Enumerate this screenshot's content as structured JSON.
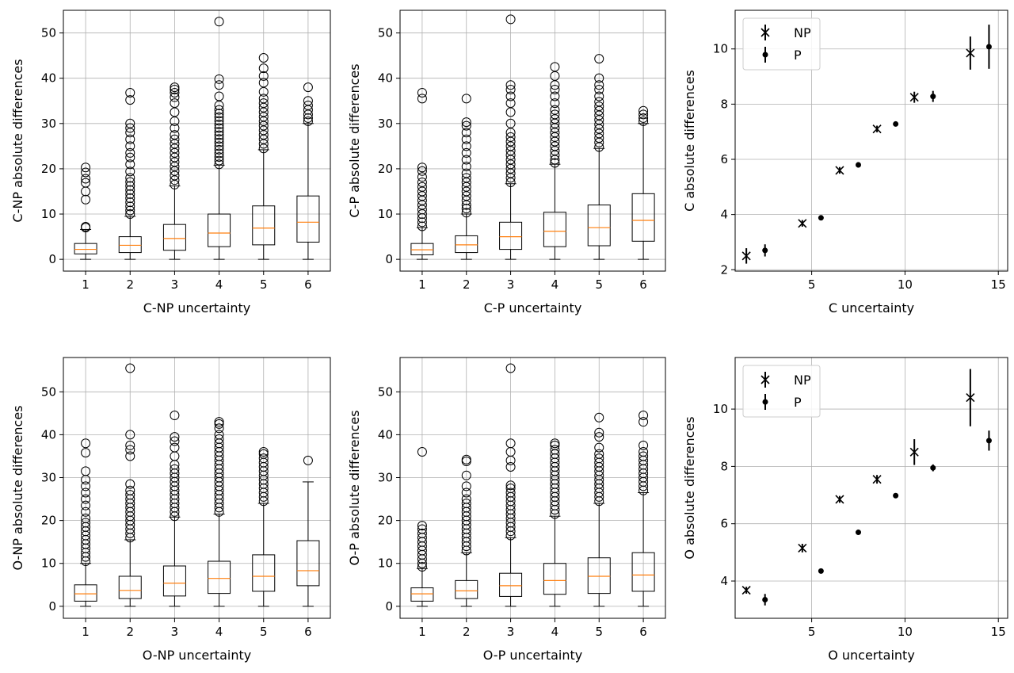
{
  "chart_data": [
    {
      "type": "box",
      "xlabel": "C-NP uncertainty",
      "ylabel": "C-NP absolute differences",
      "categories": [
        "1",
        "2",
        "3",
        "4",
        "5",
        "6"
      ],
      "xlim": [
        0.5,
        6.5
      ],
      "ylim": [
        -2.6,
        55
      ],
      "yticks": [
        0,
        10,
        20,
        30,
        40,
        50
      ],
      "grid": true,
      "colors": {
        "median": "#ff7f0e",
        "box": "#000000"
      },
      "boxes": [
        {
          "whislo": 0,
          "q1": 1.2,
          "med": 2.2,
          "q3": 3.5,
          "whishi": 6.6,
          "fliers": [
            7,
            7.2,
            13.2,
            15,
            16.9,
            17.8,
            19.2,
            20.3
          ]
        },
        {
          "whislo": 0,
          "q1": 1.5,
          "med": 3.1,
          "q3": 5.0,
          "whishi": 9.5,
          "fliers": [
            10,
            10.8,
            11.7,
            12.6,
            13.5,
            14.4,
            15.3,
            16.2,
            17.1,
            18,
            19.4,
            21,
            22.5,
            23.5,
            25,
            26.5,
            28,
            29,
            30,
            35.2,
            36.8
          ]
        },
        {
          "whislo": 0,
          "q1": 2.0,
          "med": 4.6,
          "q3": 7.7,
          "whishi": 16.2,
          "fliers": [
            16.5,
            17.5,
            18.5,
            19.5,
            20.5,
            21.5,
            22.5,
            23.5,
            24.5,
            25.5,
            26.5,
            27.5,
            29,
            30.5,
            32.5,
            34.5,
            35.8,
            36.8,
            37.5,
            38
          ]
        },
        {
          "whislo": 0,
          "q1": 2.8,
          "med": 5.8,
          "q3": 10.0,
          "whishi": 20.8,
          "fliers": [
            21,
            21.8,
            22.6,
            23.4,
            24.2,
            25,
            25.8,
            26.6,
            27.4,
            28.2,
            29,
            29.8,
            30.6,
            31.4,
            32.2,
            33,
            34,
            36,
            38.5,
            39.8,
            52.5
          ]
        },
        {
          "whislo": 0,
          "q1": 3.2,
          "med": 6.9,
          "q3": 11.8,
          "whishi": 24.2,
          "fliers": [
            24.5,
            25.5,
            26.5,
            27.5,
            28.5,
            29.5,
            30.5,
            31.5,
            32.5,
            33.5,
            34.5,
            35.5,
            37,
            39,
            40.5,
            42.2,
            44.5
          ]
        },
        {
          "whislo": 0,
          "q1": 3.8,
          "med": 8.2,
          "q3": 14.0,
          "whishi": 30.0,
          "fliers": [
            30.5,
            31.2,
            32,
            33,
            34,
            35,
            38
          ]
        }
      ]
    },
    {
      "type": "box",
      "xlabel": "C-P uncertainty",
      "ylabel": "C-P absolute differences",
      "categories": [
        "1",
        "2",
        "3",
        "4",
        "5",
        "6"
      ],
      "xlim": [
        0.5,
        6.5
      ],
      "ylim": [
        -2.6,
        55
      ],
      "yticks": [
        0,
        10,
        20,
        30,
        40,
        50
      ],
      "grid": true,
      "colors": {
        "median": "#ff7f0e",
        "box": "#000000"
      },
      "boxes": [
        {
          "whislo": 0,
          "q1": 1.0,
          "med": 2.1,
          "q3": 3.5,
          "whishi": 7.0,
          "fliers": [
            7.3,
            8.2,
            9.1,
            10,
            11,
            12,
            13,
            14,
            15,
            16,
            17,
            18.2,
            19.5,
            20.3,
            35.5,
            36.8
          ]
        },
        {
          "whislo": 0,
          "q1": 1.5,
          "med": 3.2,
          "q3": 5.2,
          "whishi": 10.0,
          "fliers": [
            10.3,
            11.2,
            12,
            13,
            14,
            15,
            16,
            17,
            18,
            19,
            20.5,
            22,
            23.5,
            25,
            26.5,
            28,
            29.5,
            30.3,
            35.5
          ]
        },
        {
          "whislo": 0,
          "q1": 2.2,
          "med": 5.0,
          "q3": 8.2,
          "whishi": 16.7,
          "fliers": [
            17,
            18,
            19,
            20,
            21,
            22,
            23,
            24,
            25,
            26,
            27,
            28,
            30,
            32.5,
            34.5,
            36,
            37.5,
            38.5,
            53
          ]
        },
        {
          "whislo": 0,
          "q1": 2.8,
          "med": 6.2,
          "q3": 10.4,
          "whishi": 21.0,
          "fliers": [
            21.3,
            22,
            23,
            24,
            25,
            26,
            27,
            28,
            29,
            30,
            31,
            32,
            33,
            34.5,
            36,
            37.5,
            38.5,
            40.5,
            42.5
          ]
        },
        {
          "whislo": 0,
          "q1": 3.0,
          "med": 7.0,
          "q3": 12.0,
          "whishi": 24.5,
          "fliers": [
            24.8,
            25.8,
            26.8,
            27.8,
            28.8,
            29.8,
            30.8,
            31.8,
            32.8,
            33.8,
            34.8,
            36,
            37.5,
            38.5,
            40,
            44.3
          ]
        },
        {
          "whislo": 0,
          "q1": 4.0,
          "med": 8.6,
          "q3": 14.5,
          "whishi": 30.0,
          "fliers": [
            30.5,
            31.2,
            32,
            32.8
          ]
        }
      ]
    },
    {
      "type": "errorbar",
      "xlabel": "C uncertainty",
      "ylabel": "C absolute differences",
      "xlim": [
        0.9,
        15.5
      ],
      "ylim": [
        1.95,
        11.4
      ],
      "xticks": [
        5,
        10,
        15
      ],
      "yticks": [
        2,
        4,
        6,
        8,
        10
      ],
      "grid": true,
      "legend_position": "upper-left",
      "series": [
        {
          "name": "NP",
          "marker": "x",
          "x": [
            1.5,
            4.5,
            6.5,
            8.5,
            10.5,
            13.5
          ],
          "y": [
            2.5,
            3.68,
            5.6,
            7.1,
            8.25,
            9.85
          ],
          "err": [
            0.28,
            0.12,
            0.12,
            0.12,
            0.2,
            0.6
          ]
        },
        {
          "name": "P",
          "marker": "dot",
          "x": [
            2.5,
            5.5,
            7.5,
            9.5,
            11.5,
            14.5
          ],
          "y": [
            2.7,
            3.88,
            5.8,
            7.28,
            8.28,
            10.08
          ],
          "err": [
            0.22,
            0.08,
            0.1,
            0.08,
            0.2,
            0.8
          ]
        }
      ]
    },
    {
      "type": "box",
      "xlabel": "O-NP uncertainty",
      "ylabel": "O-NP absolute differences",
      "categories": [
        "1",
        "2",
        "3",
        "4",
        "5",
        "6"
      ],
      "xlim": [
        0.5,
        6.5
      ],
      "ylim": [
        -2.8,
        58
      ],
      "yticks": [
        0,
        10,
        20,
        30,
        40,
        50
      ],
      "grid": true,
      "colors": {
        "median": "#ff7f0e",
        "box": "#000000"
      },
      "boxes": [
        {
          "whislo": 0,
          "q1": 1.2,
          "med": 2.9,
          "q3": 5.0,
          "whishi": 10.0,
          "fliers": [
            10.5,
            11.5,
            12.5,
            13.5,
            14.5,
            15.5,
            16.5,
            17.5,
            18.5,
            19.5,
            20.5,
            22,
            23.5,
            25,
            26.5,
            28,
            29.5,
            31.5,
            35.8,
            38
          ]
        },
        {
          "whislo": 0,
          "q1": 1.8,
          "med": 3.7,
          "q3": 7.0,
          "whishi": 15.5,
          "fliers": [
            16,
            17,
            18,
            19,
            20,
            21,
            22,
            23,
            24,
            25,
            26,
            27,
            28.5,
            35,
            36.5,
            37.5,
            40,
            55.5
          ]
        },
        {
          "whislo": 0,
          "q1": 2.4,
          "med": 5.4,
          "q3": 9.4,
          "whishi": 20.8,
          "fliers": [
            21,
            22,
            23,
            24,
            25,
            26,
            27,
            28,
            29,
            30,
            31,
            32,
            33,
            35,
            37,
            38.5,
            39.5,
            44.5
          ]
        },
        {
          "whislo": 0,
          "q1": 3.0,
          "med": 6.5,
          "q3": 10.5,
          "whishi": 21.5,
          "fliers": [
            22,
            23,
            24,
            25,
            26,
            27,
            28,
            29,
            30,
            31,
            32,
            33,
            34,
            35,
            36,
            37,
            38,
            39,
            40,
            41.5,
            42.5,
            43
          ]
        },
        {
          "whislo": 0,
          "q1": 3.5,
          "med": 7.0,
          "q3": 12.0,
          "whishi": 24.0,
          "fliers": [
            24.5,
            25.5,
            26.5,
            27.5,
            28.5,
            29.5,
            30.5,
            31.5,
            32.5,
            33.5,
            34.5,
            35.5,
            36
          ]
        },
        {
          "whislo": 0,
          "q1": 4.8,
          "med": 8.3,
          "q3": 15.3,
          "whishi": 29.0,
          "fliers": [
            34
          ]
        }
      ]
    },
    {
      "type": "box",
      "xlabel": "O-P uncertainty",
      "ylabel": "O-P absolute differences",
      "categories": [
        "1",
        "2",
        "3",
        "4",
        "5",
        "6"
      ],
      "xlim": [
        0.5,
        6.5
      ],
      "ylim": [
        -2.8,
        58
      ],
      "yticks": [
        0,
        10,
        20,
        30,
        40,
        50
      ],
      "grid": true,
      "colors": {
        "median": "#ff7f0e",
        "box": "#000000"
      },
      "boxes": [
        {
          "whislo": 0,
          "q1": 1.2,
          "med": 2.9,
          "q3": 4.3,
          "whishi": 8.8,
          "fliers": [
            9.2,
            10,
            11,
            12,
            13,
            14,
            15,
            16,
            17,
            18,
            18.8,
            36
          ]
        },
        {
          "whislo": 0,
          "q1": 1.8,
          "med": 3.6,
          "q3": 6.0,
          "whishi": 12.5,
          "fliers": [
            13,
            14,
            15,
            16,
            17,
            18,
            19,
            20,
            21,
            22,
            23,
            24,
            25,
            26.5,
            28,
            30.5,
            33.8,
            34.2
          ]
        },
        {
          "whislo": 0,
          "q1": 2.3,
          "med": 4.8,
          "q3": 7.7,
          "whishi": 16.0,
          "fliers": [
            16.5,
            17.5,
            18.5,
            19.5,
            20.5,
            21.5,
            22.5,
            23.5,
            24.5,
            25.5,
            26.5,
            27.5,
            28.2,
            32.5,
            34,
            36,
            38,
            55.5
          ]
        },
        {
          "whislo": 0,
          "q1": 2.8,
          "med": 6.0,
          "q3": 10.0,
          "whishi": 21.0,
          "fliers": [
            21.5,
            22.5,
            23.5,
            24.5,
            25.5,
            26.5,
            27.5,
            28.5,
            29.5,
            30.5,
            31.5,
            32.5,
            33.5,
            34.5,
            35.5,
            36.5,
            37.5,
            38
          ]
        },
        {
          "whislo": 0,
          "q1": 3.0,
          "med": 7.0,
          "q3": 11.3,
          "whishi": 24.0,
          "fliers": [
            24.5,
            25.5,
            26.5,
            27.5,
            28.5,
            29.5,
            30.5,
            31.5,
            32.5,
            33.5,
            34.5,
            35.5,
            37,
            39.5,
            40.5,
            44
          ]
        },
        {
          "whislo": 0,
          "q1": 3.5,
          "med": 7.3,
          "q3": 12.5,
          "whishi": 26.5,
          "fliers": [
            27,
            28,
            29,
            30,
            31,
            32,
            33,
            34,
            35,
            36,
            37.5,
            43,
            44.5
          ]
        }
      ]
    },
    {
      "type": "errorbar",
      "xlabel": "O uncertainty",
      "ylabel": "O absolute differences",
      "xlim": [
        0.9,
        15.5
      ],
      "ylim": [
        2.7,
        11.8
      ],
      "xticks": [
        5,
        10,
        15
      ],
      "yticks": [
        4,
        6,
        8,
        10
      ],
      "grid": true,
      "legend_position": "upper-left",
      "series": [
        {
          "name": "NP",
          "marker": "x",
          "x": [
            1.5,
            4.5,
            6.5,
            8.5,
            10.5,
            13.5
          ],
          "y": [
            3.68,
            5.15,
            6.85,
            7.55,
            8.5,
            10.4
          ],
          "err": [
            0.12,
            0.15,
            0.12,
            0.15,
            0.45,
            1.0
          ]
        },
        {
          "name": "P",
          "marker": "dot",
          "x": [
            2.5,
            5.5,
            7.5,
            9.5,
            11.5,
            14.5
          ],
          "y": [
            3.35,
            4.35,
            5.7,
            6.98,
            7.95,
            8.9
          ],
          "err": [
            0.2,
            0.08,
            0.08,
            0.08,
            0.12,
            0.35
          ]
        }
      ]
    }
  ]
}
